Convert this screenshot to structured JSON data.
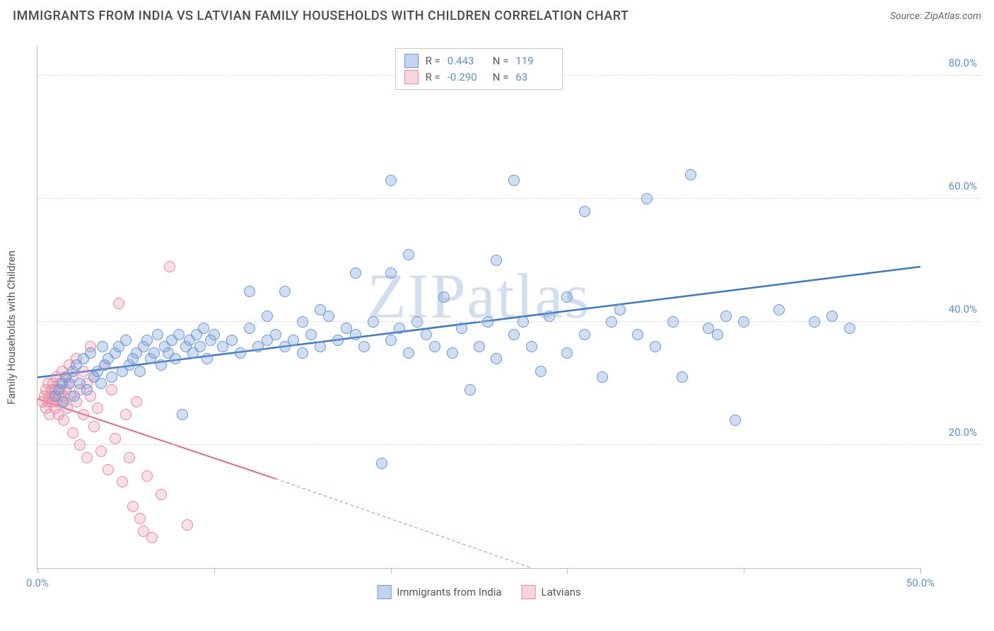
{
  "title": "IMMIGRANTS FROM INDIA VS LATVIAN FAMILY HOUSEHOLDS WITH CHILDREN CORRELATION CHART",
  "source_label": "Source: ZipAtlas.com",
  "watermark": "ZIPatlas",
  "chart": {
    "type": "scatter",
    "ylabel": "Family Households with Children",
    "xlim": [
      0,
      50
    ],
    "ylim": [
      0,
      85
    ],
    "xtick_positions": [
      0,
      10,
      20,
      30,
      40,
      50
    ],
    "xtick_labels": [
      "0.0%",
      "",
      "",
      "",
      "",
      "50.0%"
    ],
    "ytick_positions": [
      20,
      40,
      60,
      80
    ],
    "ytick_labels": [
      "20.0%",
      "40.0%",
      "60.0%",
      "80.0%"
    ],
    "grid_color": "#d9d9d9",
    "axis_color": "#bdbdbd",
    "tick_label_color": "#5a8fd6",
    "background": "#ffffff"
  },
  "legend_top": {
    "rows": [
      {
        "swatch": "blue",
        "r_label": "R =",
        "r_value": "0.443",
        "n_label": "N =",
        "n_value": "119"
      },
      {
        "swatch": "pink",
        "r_label": "R =",
        "r_value": "-0.290",
        "n_label": "N =",
        "n_value": "63"
      }
    ]
  },
  "legend_bottom": {
    "items": [
      {
        "swatch": "blue",
        "label": "Immigrants from India"
      },
      {
        "swatch": "pink",
        "label": "Latvians"
      }
    ]
  },
  "series": {
    "blue": {
      "color_fill": "rgba(120,160,220,0.35)",
      "color_stroke": "#6a98d8",
      "marker_size": 16,
      "trend": {
        "x1": 0,
        "y1": 31,
        "x2": 50,
        "y2": 49,
        "color": "#3b78c9",
        "width": 2.5,
        "dash": "none"
      },
      "points": [
        [
          1.0,
          28
        ],
        [
          1.2,
          29
        ],
        [
          1.4,
          30
        ],
        [
          1.5,
          27
        ],
        [
          1.6,
          31
        ],
        [
          1.8,
          30
        ],
        [
          2.0,
          32
        ],
        [
          2.1,
          28
        ],
        [
          2.2,
          33
        ],
        [
          2.4,
          30
        ],
        [
          2.6,
          34
        ],
        [
          2.8,
          29
        ],
        [
          3.0,
          35
        ],
        [
          3.2,
          31
        ],
        [
          3.4,
          32
        ],
        [
          3.6,
          30
        ],
        [
          3.7,
          36
        ],
        [
          3.8,
          33
        ],
        [
          4.0,
          34
        ],
        [
          4.2,
          31
        ],
        [
          4.4,
          35
        ],
        [
          4.6,
          36
        ],
        [
          4.8,
          32
        ],
        [
          5.0,
          37
        ],
        [
          5.2,
          33
        ],
        [
          5.4,
          34
        ],
        [
          5.6,
          35
        ],
        [
          5.8,
          32
        ],
        [
          6.0,
          36
        ],
        [
          6.2,
          37
        ],
        [
          6.4,
          34
        ],
        [
          6.6,
          35
        ],
        [
          6.8,
          38
        ],
        [
          7.0,
          33
        ],
        [
          7.2,
          36
        ],
        [
          7.4,
          35
        ],
        [
          7.6,
          37
        ],
        [
          7.8,
          34
        ],
        [
          8.0,
          38
        ],
        [
          8.2,
          25
        ],
        [
          8.4,
          36
        ],
        [
          8.6,
          37
        ],
        [
          8.8,
          35
        ],
        [
          9.0,
          38
        ],
        [
          9.2,
          36
        ],
        [
          9.4,
          39
        ],
        [
          9.6,
          34
        ],
        [
          9.8,
          37
        ],
        [
          10.0,
          38
        ],
        [
          10.5,
          36
        ],
        [
          11.0,
          37
        ],
        [
          11.5,
          35
        ],
        [
          12.0,
          45
        ],
        [
          12.0,
          39
        ],
        [
          12.5,
          36
        ],
        [
          13.0,
          41
        ],
        [
          13.0,
          37
        ],
        [
          13.5,
          38
        ],
        [
          14.0,
          45
        ],
        [
          14.0,
          36
        ],
        [
          14.5,
          37
        ],
        [
          15.0,
          40
        ],
        [
          15.0,
          35
        ],
        [
          15.5,
          38
        ],
        [
          16.0,
          42
        ],
        [
          16.0,
          36
        ],
        [
          16.5,
          41
        ],
        [
          17.0,
          37
        ],
        [
          17.5,
          39
        ],
        [
          18.0,
          48
        ],
        [
          18.0,
          38
        ],
        [
          18.5,
          36
        ],
        [
          19.0,
          40
        ],
        [
          19.5,
          17
        ],
        [
          20.0,
          37
        ],
        [
          20.0,
          48
        ],
        [
          20.0,
          63
        ],
        [
          20.5,
          39
        ],
        [
          21.0,
          51
        ],
        [
          21.0,
          35
        ],
        [
          21.5,
          40
        ],
        [
          22.0,
          38
        ],
        [
          22.5,
          36
        ],
        [
          23.0,
          44
        ],
        [
          23.5,
          35
        ],
        [
          24.0,
          39
        ],
        [
          24.5,
          29
        ],
        [
          25.0,
          36
        ],
        [
          25.5,
          40
        ],
        [
          26.0,
          50
        ],
        [
          26.0,
          34
        ],
        [
          27.0,
          38
        ],
        [
          27.0,
          63
        ],
        [
          27.5,
          40
        ],
        [
          28.0,
          36
        ],
        [
          28.5,
          32
        ],
        [
          29.0,
          41
        ],
        [
          30.0,
          44
        ],
        [
          30.0,
          35
        ],
        [
          31.0,
          58
        ],
        [
          31.0,
          38
        ],
        [
          32.0,
          31
        ],
        [
          32.5,
          40
        ],
        [
          33.0,
          42
        ],
        [
          34.0,
          38
        ],
        [
          34.5,
          60
        ],
        [
          35.0,
          36
        ],
        [
          36.0,
          40
        ],
        [
          36.5,
          31
        ],
        [
          37.0,
          64
        ],
        [
          38.0,
          39
        ],
        [
          38.5,
          38
        ],
        [
          39.0,
          41
        ],
        [
          39.5,
          24
        ],
        [
          40.0,
          40
        ],
        [
          42.0,
          42
        ],
        [
          44.0,
          40
        ],
        [
          45.0,
          41
        ],
        [
          46.0,
          39
        ]
      ]
    },
    "pink": {
      "color_fill": "rgba(240,150,170,0.30)",
      "color_stroke": "#e88aa0",
      "marker_size": 16,
      "trend": {
        "x1": 0,
        "y1": 27.5,
        "x2_solid": 13.5,
        "y2_solid": 14.5,
        "x2": 28,
        "y2": 0,
        "color": "#e46a8a",
        "width": 2,
        "dash_after_solid": true
      },
      "points": [
        [
          0.3,
          27
        ],
        [
          0.4,
          28
        ],
        [
          0.5,
          26
        ],
        [
          0.5,
          29
        ],
        [
          0.6,
          27
        ],
        [
          0.6,
          30
        ],
        [
          0.7,
          28
        ],
        [
          0.7,
          25
        ],
        [
          0.8,
          29
        ],
        [
          0.8,
          27
        ],
        [
          0.9,
          28
        ],
        [
          0.9,
          30
        ],
        [
          1.0,
          26
        ],
        [
          1.0,
          29
        ],
        [
          1.1,
          27
        ],
        [
          1.1,
          31
        ],
        [
          1.2,
          28
        ],
        [
          1.2,
          25
        ],
        [
          1.3,
          29
        ],
        [
          1.3,
          30
        ],
        [
          1.4,
          27
        ],
        [
          1.4,
          32
        ],
        [
          1.5,
          28
        ],
        [
          1.5,
          24
        ],
        [
          1.6,
          29
        ],
        [
          1.6,
          31
        ],
        [
          1.7,
          26
        ],
        [
          1.8,
          30
        ],
        [
          1.8,
          33
        ],
        [
          1.9,
          28
        ],
        [
          2.0,
          31
        ],
        [
          2.0,
          22
        ],
        [
          2.2,
          34
        ],
        [
          2.2,
          27
        ],
        [
          2.4,
          29
        ],
        [
          2.4,
          20
        ],
        [
          2.6,
          32
        ],
        [
          2.6,
          25
        ],
        [
          2.8,
          30
        ],
        [
          2.8,
          18
        ],
        [
          3.0,
          28
        ],
        [
          3.0,
          36
        ],
        [
          3.2,
          23
        ],
        [
          3.2,
          31
        ],
        [
          3.4,
          26
        ],
        [
          3.6,
          19
        ],
        [
          3.8,
          33
        ],
        [
          4.0,
          16
        ],
        [
          4.2,
          29
        ],
        [
          4.4,
          21
        ],
        [
          4.6,
          43
        ],
        [
          4.8,
          14
        ],
        [
          5.0,
          25
        ],
        [
          5.2,
          18
        ],
        [
          5.4,
          10
        ],
        [
          5.6,
          27
        ],
        [
          5.8,
          8
        ],
        [
          6.0,
          6
        ],
        [
          6.2,
          15
        ],
        [
          6.5,
          5
        ],
        [
          7.0,
          12
        ],
        [
          7.5,
          49
        ],
        [
          8.5,
          7
        ]
      ]
    }
  }
}
